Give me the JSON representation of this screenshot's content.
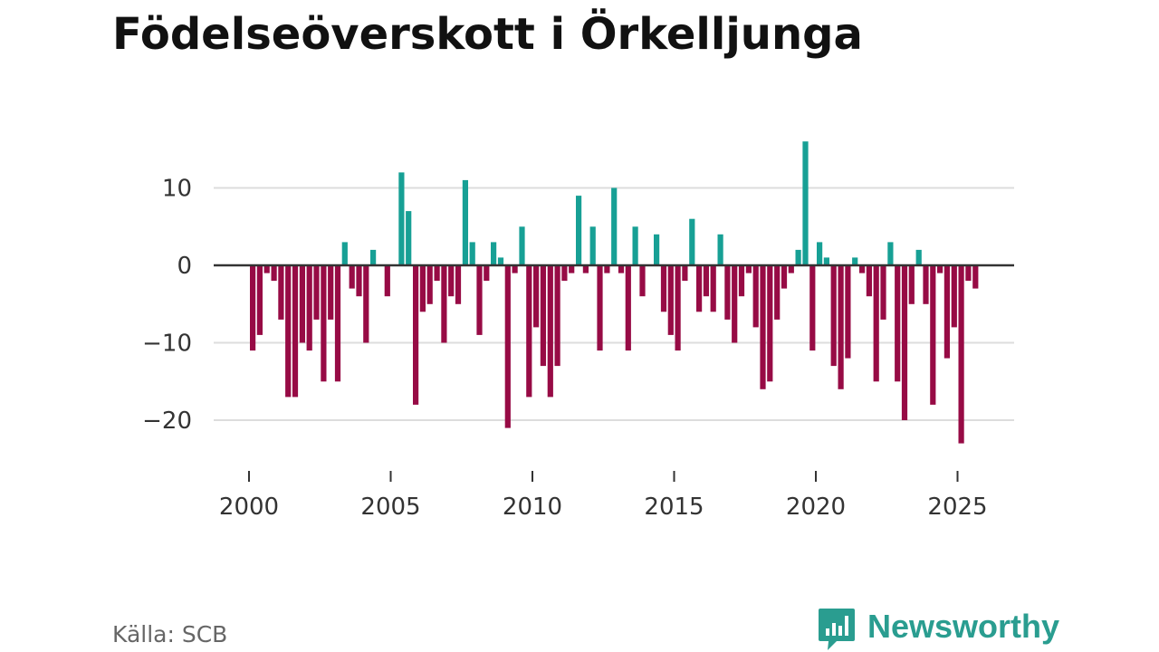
{
  "title": "Födelseöverskott i Örkelljunga",
  "source": "Källa: SCB",
  "brand": "Newsworthy",
  "colors": {
    "positive": "#17a095",
    "negative": "#970b45",
    "grid": "#dddddd",
    "zero": "#333333",
    "brand": "#2a9d90"
  },
  "chart_data": {
    "type": "bar",
    "title": "Födelseöverskott i Örkelljunga",
    "xlabel": "",
    "ylabel": "",
    "ylim": [
      -25,
      17
    ],
    "xlim": [
      1999.4,
      2026.2
    ],
    "y_ticks": [
      10,
      0,
      -10,
      -20
    ],
    "y_tick_labels": [
      "10",
      "0",
      "−10",
      "−20"
    ],
    "x_ticks": [
      2000,
      2005,
      2010,
      2015,
      2020,
      2025
    ],
    "x_tick_labels": [
      "2000",
      "2005",
      "2010",
      "2015",
      "2020",
      "2025"
    ],
    "start_year": 2000,
    "start_month": 1,
    "period_months": 3,
    "values": [
      -11,
      -9,
      -1,
      -2,
      -7,
      -17,
      -17,
      -10,
      -11,
      -7,
      -15,
      -7,
      -15,
      3,
      -3,
      -4,
      -10,
      2,
      0,
      -4,
      0,
      12,
      7,
      -18,
      -6,
      -5,
      -2,
      -10,
      -4,
      -5,
      11,
      3,
      -9,
      -2,
      3,
      1,
      -21,
      -1,
      5,
      -17,
      -8,
      -13,
      -17,
      -13,
      -2,
      -1,
      9,
      -1,
      5,
      -11,
      -1,
      10,
      -1,
      -11,
      5,
      -4,
      0,
      4,
      -6,
      -9,
      -11,
      -2,
      6,
      -6,
      -4,
      -6,
      4,
      -7,
      -10,
      -4,
      -1,
      -8,
      -16,
      -15,
      -7,
      -3,
      -1,
      2,
      16,
      -11,
      3,
      1,
      -13,
      -16,
      -12,
      1,
      -1,
      -4,
      -15,
      -7,
      3,
      -15,
      -20,
      -5,
      2,
      -5,
      -18,
      -1,
      -12,
      -8,
      -23,
      -2,
      -3
    ]
  }
}
